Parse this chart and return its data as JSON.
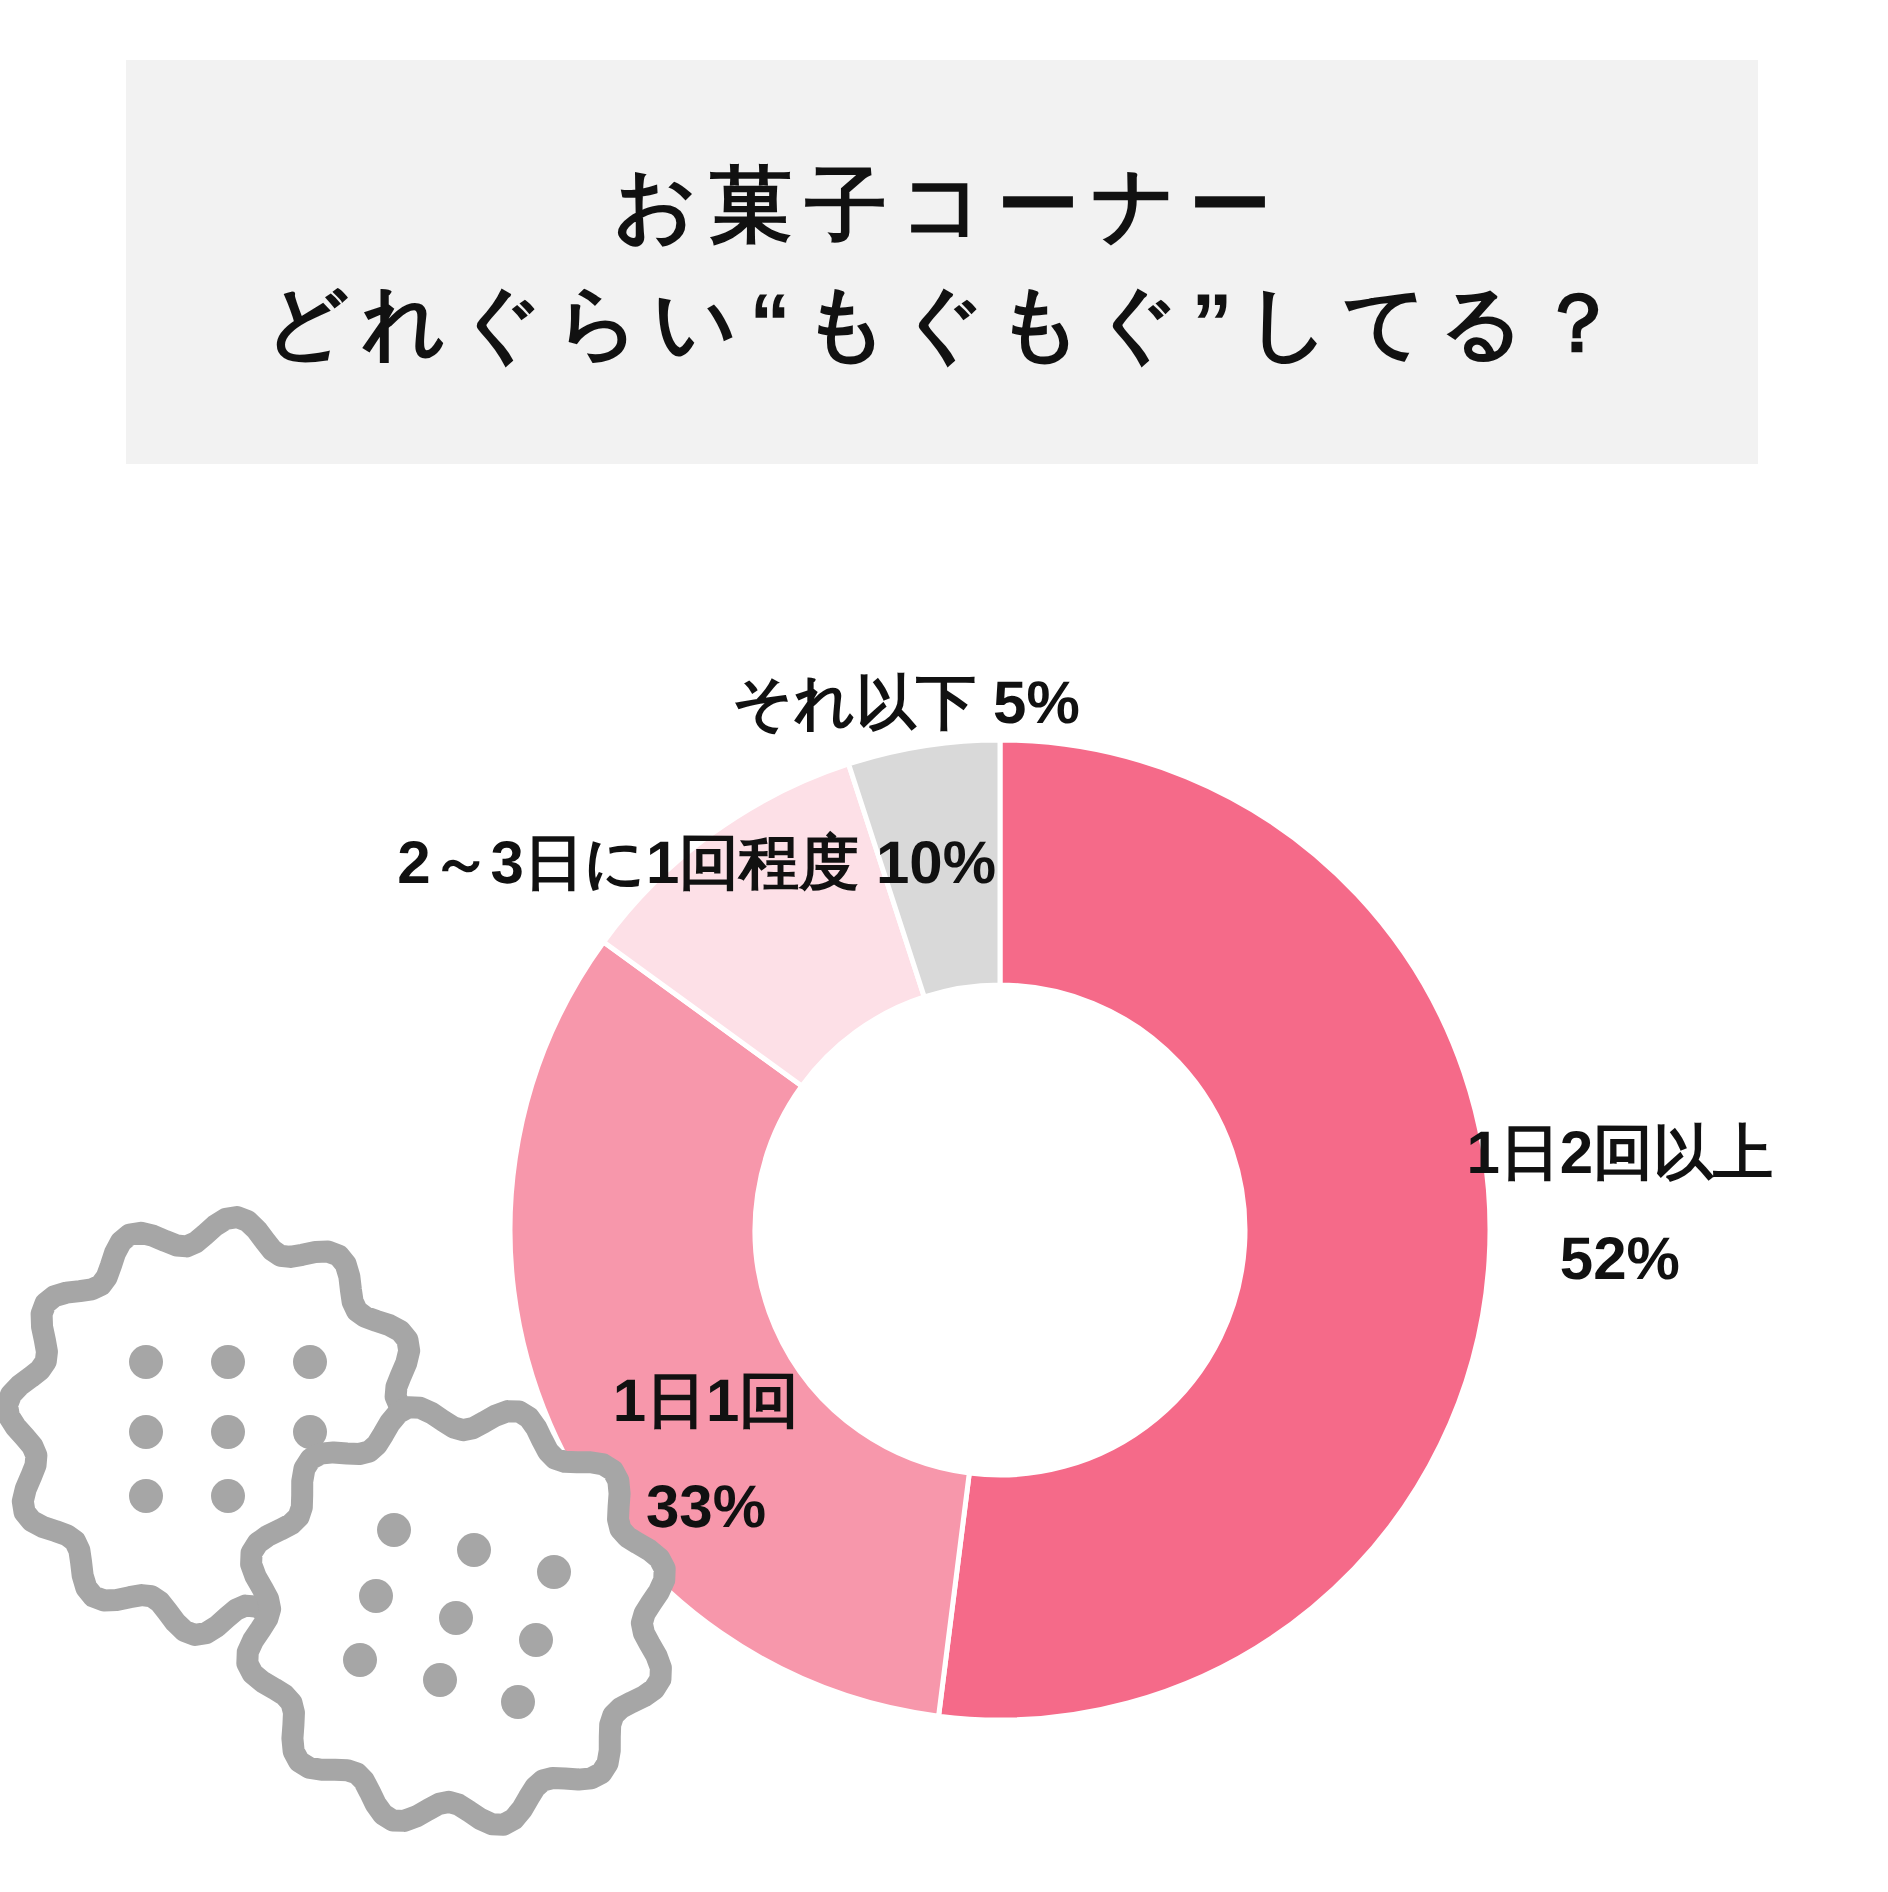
{
  "chart_data": {
    "type": "donut",
    "title": "お菓子コーナー",
    "subtitle": "どれぐらい“もぐもぐ”してる？",
    "categories": [
      "1日2回以上",
      "1日1回",
      "2～3日に1回程度",
      "それ以下"
    ],
    "values": [
      52,
      33,
      10,
      5
    ],
    "colors": [
      "#f56a89",
      "#f797ab",
      "#fde0e7",
      "#d9d9d9"
    ],
    "value_labels": [
      "52%",
      "33%",
      "10%",
      "5%"
    ]
  }
}
